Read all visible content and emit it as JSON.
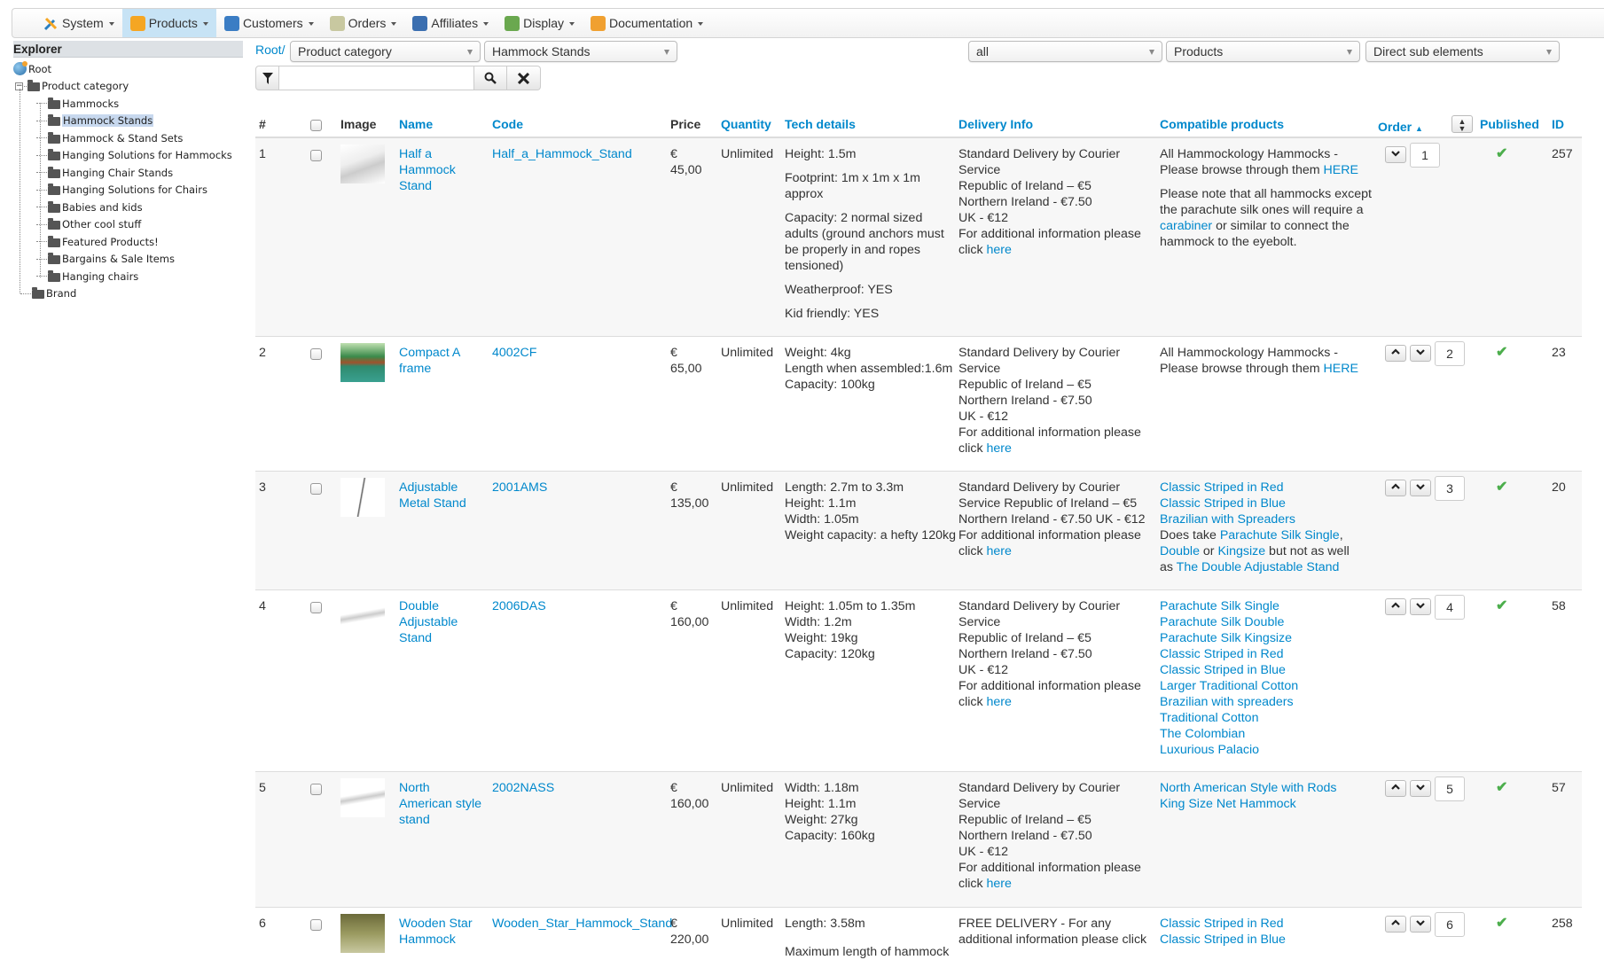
{
  "menu": [
    {
      "label": "System",
      "icon": "tools-icon",
      "color": "#2a7fc1",
      "active": false
    },
    {
      "label": "Products",
      "icon": "products-box-icon",
      "color": "#f5a623",
      "active": true
    },
    {
      "label": "Customers",
      "icon": "customers-icon",
      "color": "#3b7dc4",
      "active": false
    },
    {
      "label": "Orders",
      "icon": "orders-icon",
      "color": "#c8c8a0",
      "active": false
    },
    {
      "label": "Affiliates",
      "icon": "affiliates-icon",
      "color": "#3b6fb0",
      "active": false
    },
    {
      "label": "Display",
      "icon": "display-icon",
      "color": "#6aa84f",
      "active": false
    },
    {
      "label": "Documentation",
      "icon": "documentation-icon",
      "color": "#f0a030",
      "active": false
    }
  ],
  "explorer": {
    "title": "Explorer",
    "root": "Root",
    "category": "Product category",
    "items": [
      "Hammocks",
      "Hammock Stands",
      "Hammock & Stand Sets",
      "Hanging Solutions for Hammocks",
      "Hanging Chair Stands",
      "Hanging Solutions for Chairs",
      "Babies and kids",
      "Other cool stuff",
      "Featured Products!",
      "Bargains & Sale Items",
      "Hanging chairs"
    ],
    "selected": "Hammock Stands",
    "brand": "Brand"
  },
  "filters": {
    "root_link": "Root/",
    "category_select": "Product category",
    "subcategory_select": "Hammock Stands",
    "status_select": "all",
    "type_select": "Products",
    "depth_select": "Direct sub elements",
    "search_value": ""
  },
  "table": {
    "headers": {
      "num": "#",
      "image": "Image",
      "name": "Name",
      "code": "Code",
      "price": "Price",
      "quantity": "Quantity",
      "tech": "Tech details",
      "delivery": "Delivery Info",
      "compatible": "Compatible products",
      "order": "Order",
      "published": "Published",
      "id": "ID"
    },
    "rows": [
      {
        "num": "1",
        "name": [
          "Half a",
          "Hammock",
          "Stand"
        ],
        "code": "Half_a_Hammock_Stand",
        "currency": "€",
        "price": "45,00",
        "quantity": "Unlimited",
        "tech": [
          [
            "Height: 1.5m"
          ],
          [
            "Footprint: 1m x 1m x 1m",
            "approx"
          ],
          [
            "Capacity: 2 normal sized",
            "adults (ground anchors must",
            "be properly in and ropes",
            "tensioned)"
          ],
          [
            "Weatherproof: YES"
          ],
          [
            "Kid friendly: YES"
          ]
        ],
        "delivery": [
          [
            "Standard Delivery by Courier",
            "Service",
            "Republic of Ireland – €5",
            "Northern Ireland - €7.50",
            "UK - €12",
            "For additional information please",
            [
              {
                "t": "click "
              },
              {
                "t": "here",
                "a": true
              }
            ]
          ]
        ],
        "compatible": [
          [
            "All Hammockology Hammocks -",
            [
              {
                "t": "Please browse through them "
              },
              {
                "t": "HERE",
                "a": true
              }
            ]
          ],
          [
            "Please note that all hammocks except",
            "the parachute silk ones will require a",
            [
              {
                "t": "carabiner",
                "a": true
              },
              {
                "t": " or similar to connect the"
              }
            ],
            "hammock to the eyebolt."
          ]
        ],
        "order": "1",
        "up": false,
        "down": true,
        "published": true,
        "id": "257",
        "thumb": "diagram"
      },
      {
        "num": "2",
        "name": [
          "Compact A",
          "frame"
        ],
        "code": "4002CF",
        "currency": "€",
        "price": "65,00",
        "quantity": "Unlimited",
        "tech": [
          [
            "Weight: 4kg",
            "Length when assembled:1.6m",
            "Capacity: 100kg"
          ]
        ],
        "delivery": [
          [
            "Standard Delivery by Courier",
            "Service",
            "Republic of Ireland – €5",
            "Northern Ireland - €7.50",
            "UK - €12",
            "For additional information please",
            [
              {
                "t": "click "
              },
              {
                "t": "here",
                "a": true
              }
            ]
          ]
        ],
        "compatible": [
          [
            "All Hammockology Hammocks -",
            [
              {
                "t": "Please browse through them "
              },
              {
                "t": "HERE",
                "a": true
              }
            ]
          ]
        ],
        "order": "2",
        "up": true,
        "down": true,
        "published": true,
        "id": "23",
        "thumb": "green"
      },
      {
        "num": "3",
        "name": [
          "Adjustable",
          "Metal Stand"
        ],
        "code": "2001AMS",
        "currency": "€",
        "price": "135,00",
        "quantity": "Unlimited",
        "tech": [
          [
            "Length: 2.7m to 3.3m",
            "Height: 1.1m",
            "Width: 1.05m",
            "Weight capacity: a hefty 120kg"
          ]
        ],
        "delivery": [
          [
            "Standard Delivery by Courier",
            "Service Republic of Ireland – €5",
            "Northern Ireland - €7.50 UK - €12",
            "For additional information please",
            [
              {
                "t": "click "
              },
              {
                "t": "here",
                "a": true
              }
            ]
          ]
        ],
        "compatible": [
          [
            [
              {
                "t": "Classic Striped in Red",
                "a": true
              }
            ],
            [
              {
                "t": "Classic Striped in Blue",
                "a": true
              }
            ],
            [
              {
                "t": "Brazilian with Spreaders",
                "a": true
              }
            ],
            [
              {
                "t": "Does take "
              },
              {
                "t": "Parachute Silk Single",
                "a": true
              },
              {
                "t": ","
              }
            ],
            [
              {
                "t": "Double",
                "a": true
              },
              {
                "t": " or "
              },
              {
                "t": "Kingsize",
                "a": true
              },
              {
                "t": " but not as well"
              }
            ],
            [
              {
                "t": "as "
              },
              {
                "t": "The Double Adjustable Stand",
                "a": true
              }
            ]
          ]
        ],
        "order": "3",
        "up": true,
        "down": true,
        "published": true,
        "id": "20",
        "thumb": "stand"
      },
      {
        "num": "4",
        "name": [
          "Double",
          "Adjustable",
          "Stand"
        ],
        "code": "2006DAS",
        "currency": "€",
        "price": "160,00",
        "quantity": "Unlimited",
        "tech": [
          [
            "Height: 1.05m to 1.35m",
            "Width: 1.2m",
            "Weight: 19kg",
            "Capacity: 120kg"
          ]
        ],
        "delivery": [
          [
            "Standard Delivery by Courier",
            "Service",
            "Republic of Ireland – €5",
            "Northern Ireland - €7.50",
            "UK - €12",
            "For additional information please",
            [
              {
                "t": "click "
              },
              {
                "t": "here",
                "a": true
              }
            ]
          ]
        ],
        "compatible": [
          [
            [
              {
                "t": "Parachute Silk Single",
                "a": true
              }
            ],
            [
              {
                "t": "Parachute Silk Double",
                "a": true
              }
            ],
            [
              {
                "t": "Parachute Silk Kingsize",
                "a": true
              }
            ],
            [
              {
                "t": "Classic Striped in Red",
                "a": true
              }
            ],
            [
              {
                "t": "Classic Striped in Blue",
                "a": true
              }
            ],
            [
              {
                "t": "Larger Traditional Cotton",
                "a": true
              }
            ],
            [
              {
                "t": "Brazilian with spreaders",
                "a": true
              }
            ],
            [
              {
                "t": "Traditional Cotton",
                "a": true
              }
            ],
            [
              {
                "t": "The Colombian",
                "a": true
              }
            ],
            [
              {
                "t": "Luxurious Palacio",
                "a": true
              }
            ]
          ]
        ],
        "order": "4",
        "up": true,
        "down": true,
        "published": true,
        "id": "58",
        "thumb": "light"
      },
      {
        "num": "5",
        "name": [
          "North",
          "American style",
          "stand"
        ],
        "code": "2002NASS",
        "currency": "€",
        "price": "160,00",
        "quantity": "Unlimited",
        "tech": [
          [
            "Width: 1.18m",
            "Height: 1.1m",
            "Weight: 27kg",
            "Capacity: 160kg"
          ]
        ],
        "delivery": [
          [
            "Standard Delivery by Courier",
            "Service",
            "Republic of Ireland – €5",
            "Northern Ireland - €7.50",
            "UK - €12",
            "For additional information please",
            [
              {
                "t": "click "
              },
              {
                "t": "here",
                "a": true
              }
            ]
          ]
        ],
        "compatible": [
          [
            [
              {
                "t": "North American Style with Rods",
                "a": true
              }
            ],
            [
              {
                "t": "King Size Net Hammock",
                "a": true
              }
            ]
          ]
        ],
        "order": "5",
        "up": true,
        "down": true,
        "published": true,
        "id": "57",
        "thumb": "light"
      },
      {
        "num": "6",
        "name": [
          "Wooden Star",
          "Hammock"
        ],
        "code": "Wooden_Star_Hammock_Stand",
        "currency": "€",
        "price": "220,00",
        "quantity": "Unlimited",
        "tech": [
          [
            "Length: 3.58m"
          ],
          [
            "Maximum length of hammock"
          ]
        ],
        "delivery": [
          [
            "FREE DELIVERY - For any",
            "additional information please click"
          ]
        ],
        "compatible": [
          [
            [
              {
                "t": "Classic Striped in Red",
                "a": true
              }
            ],
            [
              {
                "t": "Classic Striped in Blue",
                "a": true
              }
            ]
          ]
        ],
        "order": "6",
        "up": true,
        "down": true,
        "published": true,
        "id": "258",
        "thumb": "wood"
      }
    ]
  },
  "colors": {
    "link": "#0088cc",
    "active_menu": "#c7e3f5",
    "published_check": "#4cae4c",
    "row_alt": "#f7f7f7"
  }
}
